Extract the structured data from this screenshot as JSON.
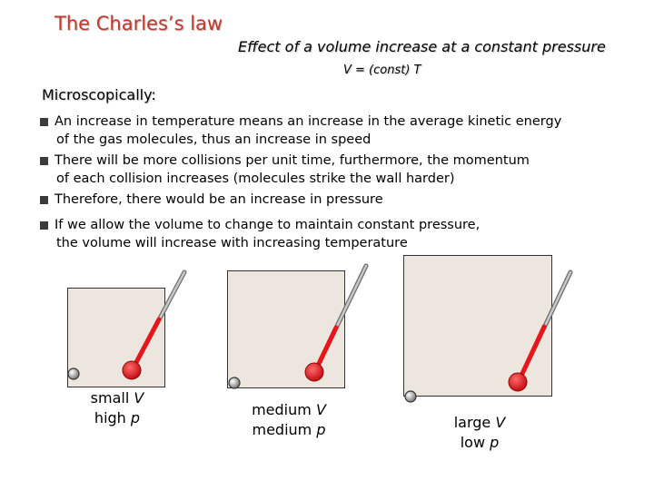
{
  "title": "The Charles’s law",
  "subtitle": "Effect of a volume increase at a constant pressure",
  "formula": "V = (const) T",
  "section_heading": "Microscopically:",
  "bullets": [
    {
      "line1": "An increase in temperature means an increase in the average kinetic energy",
      "line2": "of the gas molecules, thus an increase in speed"
    },
    {
      "line1": "There will be more collisions per unit time, furthermore, the momentum",
      "line2": "of each collision increases (molecules strike the wall harder)"
    },
    {
      "line1": "Therefore, there would be an increase in pressure",
      "line2": ""
    },
    {
      "line1": "If we allow the volume to change to maintain constant pressure,",
      "line2": "the volume will increase with increasing temperature"
    }
  ],
  "panels": [
    {
      "volume_word": "small",
      "volume_symbol": "V",
      "pressure_word": "high",
      "pressure_symbol": "p"
    },
    {
      "volume_word": "medium",
      "volume_symbol": "V",
      "pressure_word": "medium",
      "pressure_symbol": "p"
    },
    {
      "volume_word": "large",
      "volume_symbol": "V",
      "pressure_word": "low",
      "pressure_symbol": "p"
    }
  ],
  "colors": {
    "title": "#c0392b",
    "box_fill": "#ece6de",
    "mercury": "#e8151b",
    "glass": "#9a9a9a"
  }
}
